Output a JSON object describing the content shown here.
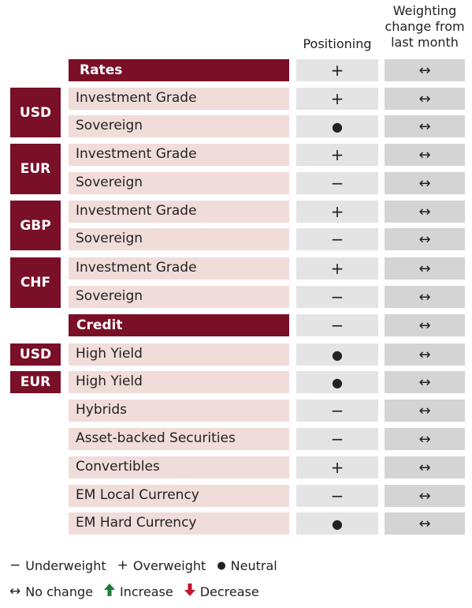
{
  "headers": {
    "positioning": "Positioning",
    "change": "Weighting change from last month"
  },
  "rows": [
    {
      "label": "Rates",
      "banner": true,
      "positioning": "+",
      "change": "↔"
    },
    {
      "label": "Investment Grade",
      "positioning": "+",
      "change": "↔"
    },
    {
      "label": "Sovereign",
      "positioning": "●",
      "change": "↔"
    },
    {
      "label": "Investment Grade",
      "positioning": "+",
      "change": "↔"
    },
    {
      "label": "Sovereign",
      "positioning": "−",
      "change": "↔"
    },
    {
      "label": "Investment Grade",
      "positioning": "+",
      "change": "↔"
    },
    {
      "label": "Sovereign",
      "positioning": "−",
      "change": "↔"
    },
    {
      "label": "Investment Grade",
      "positioning": "+",
      "change": "↔"
    },
    {
      "label": "Sovereign",
      "positioning": "−",
      "change": "↔"
    },
    {
      "label": "Credit",
      "banner": true,
      "positioning": "−",
      "change": "↔"
    },
    {
      "label": "High Yield",
      "positioning": "●",
      "change": "↔"
    },
    {
      "label": "High Yield",
      "positioning": "●",
      "change": "↔"
    },
    {
      "label": "Hybrids",
      "positioning": "−",
      "change": "↔"
    },
    {
      "label": "Asset-backed Securities",
      "positioning": "−",
      "change": "↔"
    },
    {
      "label": "Convertibles",
      "positioning": "+",
      "change": "↔"
    },
    {
      "label": "EM Local Currency",
      "positioning": "−",
      "change": "↔"
    },
    {
      "label": "EM Hard Currency",
      "positioning": "●",
      "change": "↔"
    }
  ],
  "regions": [
    "USD",
    "EUR",
    "GBP",
    "CHF",
    "USD",
    "EUR"
  ],
  "legend": {
    "underweight_symbol": "−",
    "underweight": "Underweight",
    "overweight_symbol": "+",
    "overweight": "Overweight",
    "neutral_symbol": "●",
    "neutral": "Neutral",
    "nochange_symbol": "↔",
    "nochange": "No change",
    "increase_symbol": "🡅",
    "increase": "Increase",
    "decrease_symbol": "🡇",
    "decrease": "Decrease"
  },
  "colors": {
    "brand": "#7a0f28",
    "label_bg": "#f0dcd9",
    "cell_bg": "#e4e4e4",
    "increase": "#1f7a3d",
    "decrease": "#c0182c"
  }
}
